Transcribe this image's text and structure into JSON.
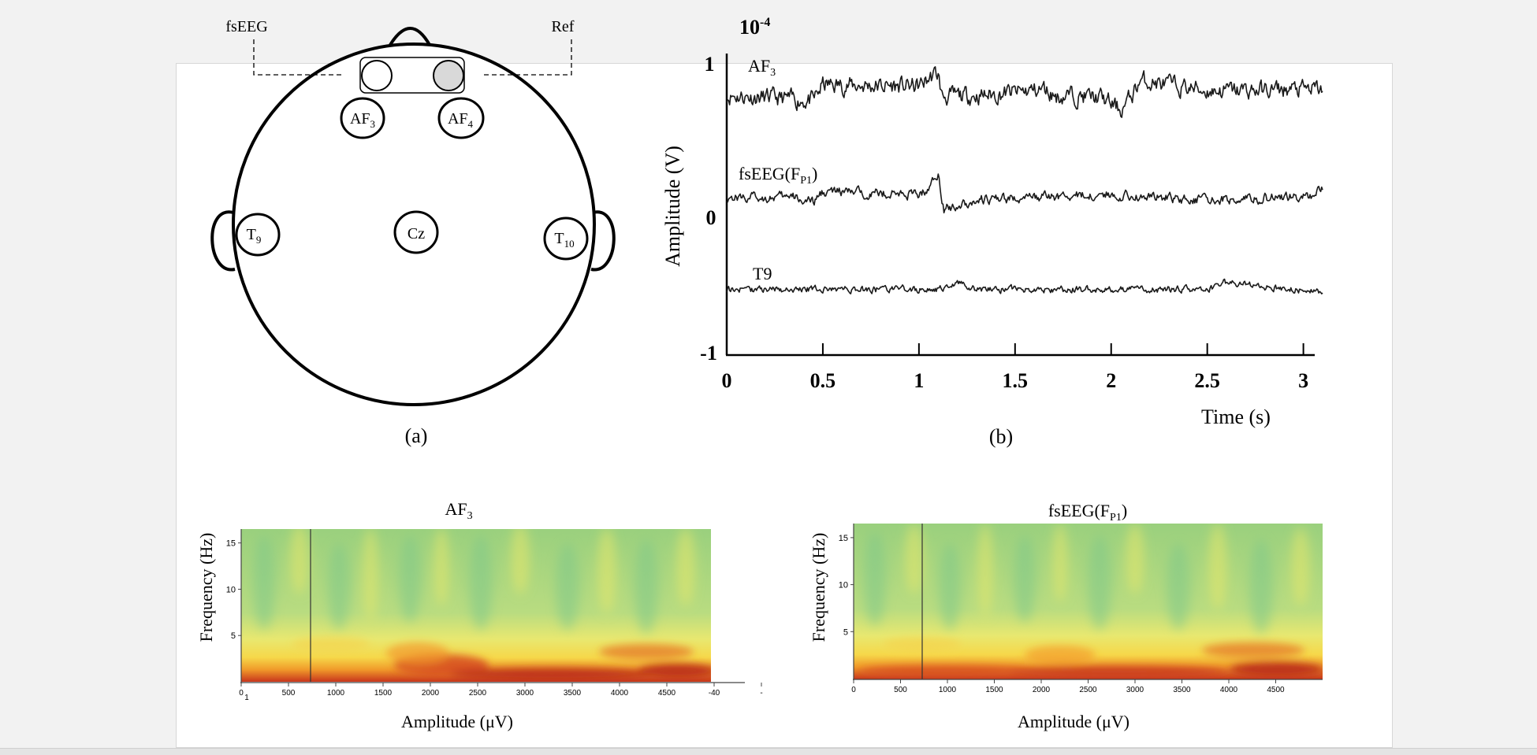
{
  "colors": {
    "background": "#f2f2f2",
    "page": "#ffffff",
    "trace": "#1a1a1a",
    "ref_electrode": "#d9d9d9"
  },
  "panel_a": {
    "caption": "(a)",
    "fseeg_label": "fsEEG",
    "ref_label": "Ref",
    "electrodes": {
      "af3": {
        "base": "AF",
        "sub": "3"
      },
      "af4": {
        "base": "AF",
        "sub": "4"
      },
      "t9": {
        "base": "T",
        "sub": "9"
      },
      "t10": {
        "base": "T",
        "sub": "10"
      },
      "cz": "Cz"
    }
  },
  "panel_b": {
    "caption": "(b)",
    "scale_base": "10",
    "scale_exp": "-4",
    "chart_data": {
      "type": "line",
      "xlabel": "Time (s)",
      "ylabel": "Amplitude (V)",
      "xlim": [
        0,
        3.1
      ],
      "ylim": [
        -1,
        1
      ],
      "xticks": [
        0,
        0.5,
        1,
        1.5,
        2,
        2.5,
        3
      ],
      "xtick_labels": [
        "0",
        "0.5",
        "1",
        "1.5",
        "2",
        "2.5",
        "3"
      ],
      "ytick_labels": [
        "1",
        "0",
        "-1"
      ],
      "series": [
        {
          "name": "AF3",
          "label_base": "AF",
          "label_sub": "3",
          "offset": 0.78,
          "noise": 0.045,
          "trend_t": [
            0,
            0.45,
            0.5,
            1.0,
            1.08,
            1.1,
            1.12,
            1.35,
            1.65,
            1.72,
            1.8,
            1.95,
            2.05,
            2.1,
            2.15,
            2.5,
            3.1
          ],
          "trend_v": [
            0.78,
            0.74,
            0.85,
            0.84,
            0.92,
            0.92,
            0.77,
            0.78,
            0.82,
            0.77,
            0.78,
            0.76,
            0.68,
            0.76,
            0.88,
            0.81,
            0.82
          ]
        },
        {
          "name": "fsEEG(FP1)",
          "label_base": "fsEEG(F",
          "label_sub": "P1",
          "label_tail": ")",
          "offset": 0.09,
          "noise": 0.025,
          "trend_t": [
            0,
            0.35,
            0.45,
            0.5,
            1.0,
            1.05,
            1.1,
            1.13,
            1.3,
            2.0,
            2.5,
            3.05,
            3.1
          ],
          "trend_v": [
            0.08,
            0.08,
            0.04,
            0.12,
            0.1,
            0.14,
            0.25,
            0.0,
            0.06,
            0.1,
            0.06,
            0.09,
            0.16
          ]
        },
        {
          "name": "T9",
          "label": "T9",
          "offset": -0.55,
          "noise": 0.018,
          "trend_t": [
            0,
            1.15,
            1.2,
            1.3,
            2.5,
            2.6,
            3.1
          ],
          "trend_v": [
            -0.55,
            -0.55,
            -0.5,
            -0.55,
            -0.55,
            -0.5,
            -0.57
          ]
        }
      ]
    }
  },
  "spectrograms": [
    {
      "title_base": "AF",
      "title_sub": "3",
      "title_tail": "",
      "ylabel": "Frequency (Hz)",
      "xlabel": "Amplitude (μV)",
      "yticks": [
        "15",
        "10",
        "5"
      ],
      "ylim": [
        0,
        16.5
      ],
      "xticks": [
        "0",
        "500",
        "1000",
        "1500",
        "2000",
        "2500",
        "3000",
        "3500",
        "4000",
        "4500",
        "-40",
        "-"
      ],
      "extra_tick": "1",
      "marker_x": 750
    },
    {
      "title_base": "fsEEG(F",
      "title_sub": "P1",
      "title_tail": ")",
      "ylabel": "Frequency (Hz)",
      "xlabel": "Amplitude (μV)",
      "yticks": [
        "15",
        "10",
        "5"
      ],
      "ylim": [
        0,
        16.5
      ],
      "xticks": [
        "0",
        "500",
        "1000",
        "1500",
        "2000",
        "2500",
        "3000",
        "3500",
        "4000",
        "4500"
      ],
      "marker_x": 750
    }
  ]
}
